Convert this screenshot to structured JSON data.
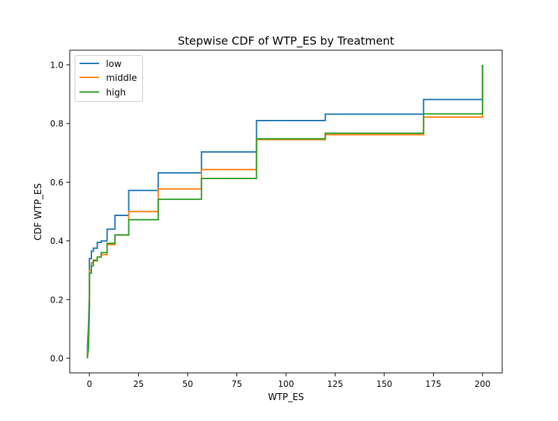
{
  "chart_data": {
    "type": "line",
    "step": "post",
    "title": "Stepwise CDF of WTP_ES by Treatment",
    "xlabel": "WTP_ES",
    "ylabel": "CDF WTP_ES",
    "xlim": [
      -10,
      210
    ],
    "ylim": [
      -0.05,
      1.05
    ],
    "x_ticks": [
      0,
      25,
      50,
      75,
      100,
      125,
      150,
      175,
      200
    ],
    "x_tick_labels": [
      "0",
      "25",
      "50",
      "75",
      "100",
      "125",
      "150",
      "175",
      "200"
    ],
    "y_ticks": [
      0.0,
      0.2,
      0.4,
      0.6,
      0.8,
      1.0
    ],
    "y_tick_labels": [
      "0.0",
      "0.2",
      "0.4",
      "0.6",
      "0.8",
      "1.0"
    ],
    "grid": false,
    "legend_position": "top-left",
    "series": [
      {
        "name": "low",
        "color": "#1f77b4",
        "points": [
          [
            -1,
            0.0
          ],
          [
            -1,
            0.04
          ],
          [
            -0.5,
            0.1
          ],
          [
            0,
            0.22
          ],
          [
            0,
            0.34
          ],
          [
            1,
            0.34
          ],
          [
            1,
            0.365
          ],
          [
            2,
            0.365
          ],
          [
            2,
            0.375
          ],
          [
            4,
            0.375
          ],
          [
            4,
            0.395
          ],
          [
            6,
            0.395
          ],
          [
            6,
            0.4
          ],
          [
            9,
            0.4
          ],
          [
            9,
            0.44
          ],
          [
            13,
            0.44
          ],
          [
            13,
            0.487
          ],
          [
            20,
            0.487
          ],
          [
            20,
            0.572
          ],
          [
            35,
            0.572
          ],
          [
            35,
            0.632
          ],
          [
            57,
            0.632
          ],
          [
            57,
            0.703
          ],
          [
            85,
            0.703
          ],
          [
            85,
            0.81
          ],
          [
            120,
            0.81
          ],
          [
            120,
            0.832
          ],
          [
            170,
            0.832
          ],
          [
            170,
            0.882
          ],
          [
            200,
            0.882
          ],
          [
            200,
            1.0
          ]
        ]
      },
      {
        "name": "middle",
        "color": "#ff7f0e",
        "points": [
          [
            -1,
            0.0
          ],
          [
            -1,
            0.015
          ],
          [
            -0.5,
            0.05
          ],
          [
            0,
            0.18
          ],
          [
            0,
            0.3
          ],
          [
            1,
            0.3
          ],
          [
            1,
            0.325
          ],
          [
            2,
            0.325
          ],
          [
            2,
            0.335
          ],
          [
            4,
            0.335
          ],
          [
            4,
            0.345
          ],
          [
            6,
            0.345
          ],
          [
            6,
            0.353
          ],
          [
            9,
            0.353
          ],
          [
            9,
            0.387
          ],
          [
            13,
            0.387
          ],
          [
            13,
            0.42
          ],
          [
            20,
            0.42
          ],
          [
            20,
            0.5
          ],
          [
            35,
            0.5
          ],
          [
            35,
            0.577
          ],
          [
            57,
            0.577
          ],
          [
            57,
            0.643
          ],
          [
            85,
            0.643
          ],
          [
            85,
            0.745
          ],
          [
            120,
            0.745
          ],
          [
            120,
            0.762
          ],
          [
            170,
            0.762
          ],
          [
            170,
            0.822
          ],
          [
            200,
            0.822
          ],
          [
            200,
            1.0
          ]
        ]
      },
      {
        "name": "high",
        "color": "#2ca02c",
        "points": [
          [
            -1,
            0.0
          ],
          [
            -1,
            0.005
          ],
          [
            -0.5,
            0.03
          ],
          [
            0,
            0.17
          ],
          [
            0,
            0.29
          ],
          [
            1,
            0.29
          ],
          [
            1,
            0.315
          ],
          [
            2,
            0.315
          ],
          [
            2,
            0.332
          ],
          [
            4,
            0.332
          ],
          [
            4,
            0.345
          ],
          [
            6,
            0.345
          ],
          [
            6,
            0.36
          ],
          [
            9,
            0.36
          ],
          [
            9,
            0.392
          ],
          [
            13,
            0.392
          ],
          [
            13,
            0.42
          ],
          [
            20,
            0.42
          ],
          [
            20,
            0.472
          ],
          [
            35,
            0.472
          ],
          [
            35,
            0.542
          ],
          [
            57,
            0.542
          ],
          [
            57,
            0.613
          ],
          [
            85,
            0.613
          ],
          [
            85,
            0.748
          ],
          [
            120,
            0.748
          ],
          [
            120,
            0.767
          ],
          [
            170,
            0.767
          ],
          [
            170,
            0.833
          ],
          [
            200,
            0.833
          ],
          [
            200,
            1.0
          ]
        ]
      }
    ]
  }
}
